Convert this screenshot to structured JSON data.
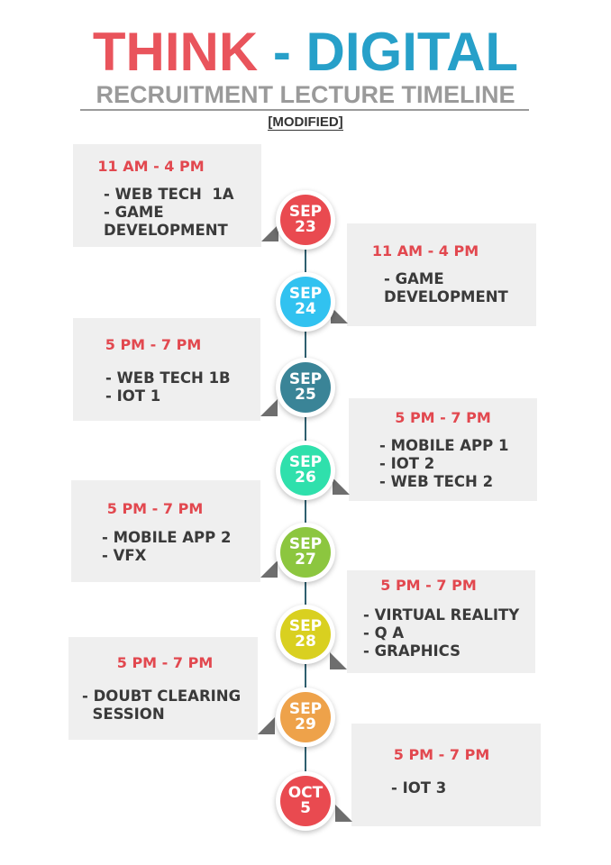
{
  "header": {
    "title_part1": "THINK",
    "title_sep": " - ",
    "title_part2": "DIGITAL",
    "subtitle": "RECRUITMENT LECTURE TIMELINE",
    "note": "[MODIFIED]"
  },
  "colors": {
    "title_red": "#e9545c",
    "title_blue": "#27a0c9",
    "time_red": "#e2484f"
  },
  "events": [
    {
      "month": "SEP",
      "day": "23",
      "color": "#e94a50",
      "time": "11 AM - 4 PM",
      "items": [
        "- WEB TECH  1A",
        "- GAME",
        "DEVELOPMENT"
      ]
    },
    {
      "month": "SEP",
      "day": "24",
      "color": "#31c2f0",
      "time": "11 AM - 4 PM",
      "items": [
        "- GAME",
        "DEVELOPMENT"
      ]
    },
    {
      "month": "SEP",
      "day": "25",
      "color": "#3a8497",
      "time": "5 PM - 7 PM",
      "items": [
        "- WEB TECH 1B",
        "- IOT 1"
      ]
    },
    {
      "month": "SEP",
      "day": "26",
      "color": "#2fe0ac",
      "time": "5 PM - 7 PM",
      "items": [
        "- MOBILE APP 1",
        "- IOT 2",
        "- WEB TECH 2"
      ]
    },
    {
      "month": "SEP",
      "day": "27",
      "color": "#8cc63f",
      "time": "5 PM - 7 PM",
      "items": [
        "- MOBILE APP 2",
        "- VFX"
      ]
    },
    {
      "month": "SEP",
      "day": "28",
      "color": "#d9d020",
      "time": "5 PM - 7 PM",
      "items": [
        "- VIRTUAL REALITY",
        "- Q A",
        "- GRAPHICS"
      ]
    },
    {
      "month": "SEP",
      "day": "29",
      "color": "#eea24a",
      "time": "5 PM - 7 PM",
      "items": [
        "- DOUBT CLEARING",
        "  SESSION"
      ]
    },
    {
      "month": "OCT",
      "day": "5",
      "color": "#e94a50",
      "time": "5 PM - 7 PM",
      "items": [
        "- IOT 3"
      ]
    }
  ]
}
